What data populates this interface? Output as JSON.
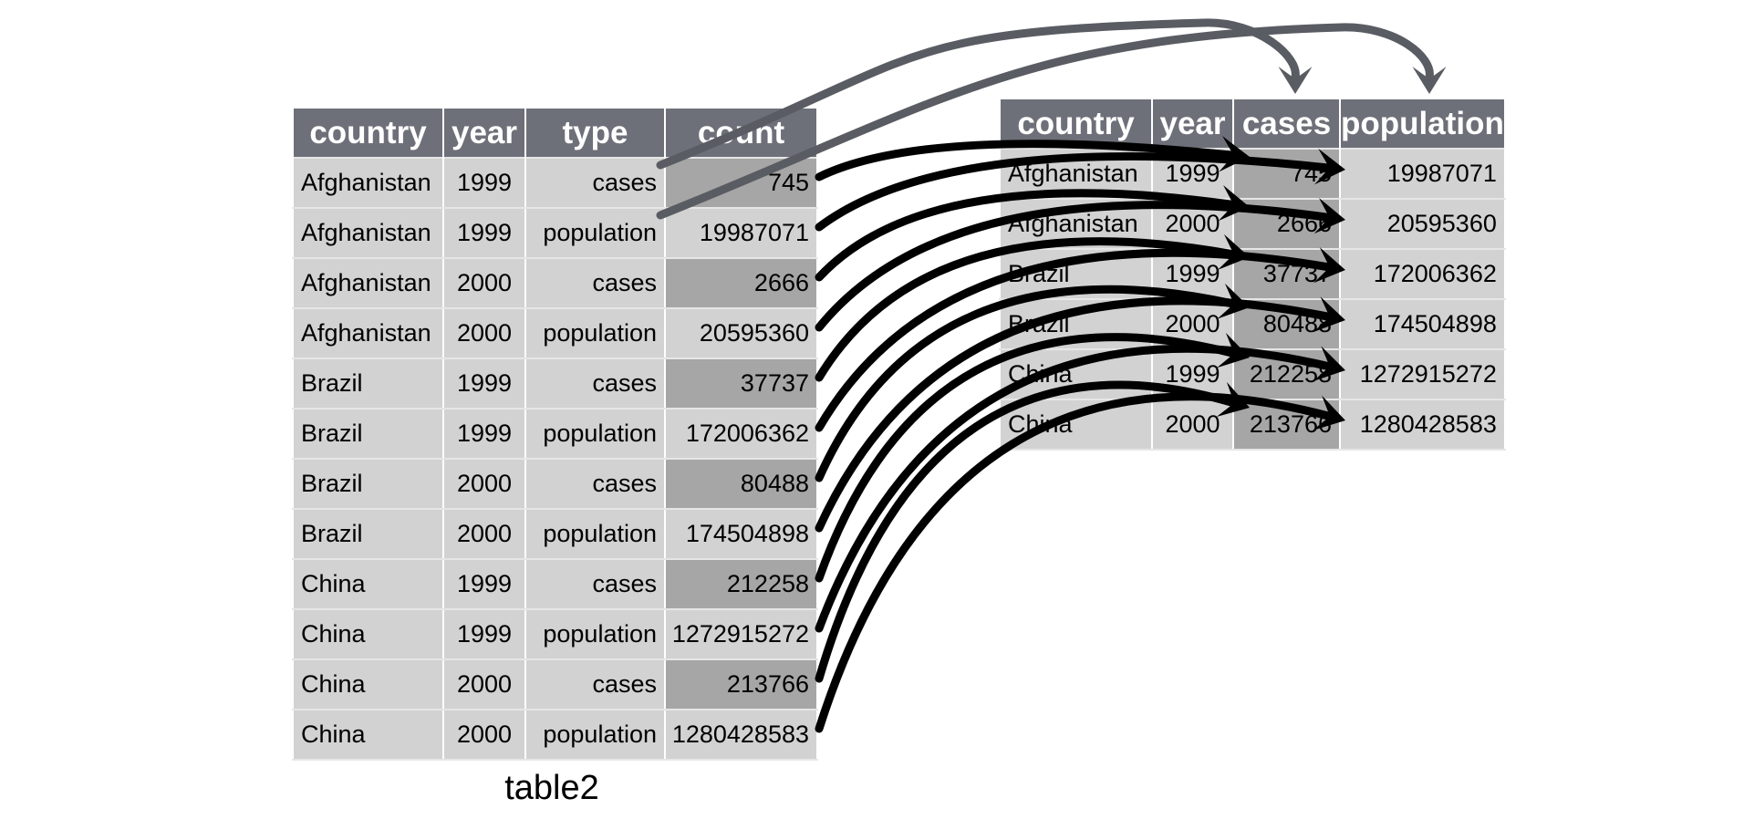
{
  "left_table": {
    "caption": "table2",
    "headers": [
      "country",
      "year",
      "type",
      "count"
    ],
    "rows": [
      [
        "Afghanistan",
        "1999",
        "cases",
        "745"
      ],
      [
        "Afghanistan",
        "1999",
        "population",
        "19987071"
      ],
      [
        "Afghanistan",
        "2000",
        "cases",
        "2666"
      ],
      [
        "Afghanistan",
        "2000",
        "population",
        "20595360"
      ],
      [
        "Brazil",
        "1999",
        "cases",
        "37737"
      ],
      [
        "Brazil",
        "1999",
        "population",
        "172006362"
      ],
      [
        "Brazil",
        "2000",
        "cases",
        "80488"
      ],
      [
        "Brazil",
        "2000",
        "population",
        "174504898"
      ],
      [
        "China",
        "1999",
        "cases",
        "212258"
      ],
      [
        "China",
        "1999",
        "population",
        "1272915272"
      ],
      [
        "China",
        "2000",
        "cases",
        "213766"
      ],
      [
        "China",
        "2000",
        "population",
        "1280428583"
      ]
    ]
  },
  "right_table": {
    "headers": [
      "country",
      "year",
      "cases",
      "population"
    ],
    "rows": [
      [
        "Afghanistan",
        "1999",
        "745",
        "19987071"
      ],
      [
        "Afghanistan",
        "2000",
        "2666",
        "20595360"
      ],
      [
        "Brazil",
        "1999",
        "37737",
        "172006362"
      ],
      [
        "Brazil",
        "2000",
        "80488",
        "174504898"
      ],
      [
        "China",
        "1999",
        "212258",
        "1272915272"
      ],
      [
        "China",
        "2000",
        "213766",
        "1280428583"
      ]
    ]
  },
  "colors": {
    "header_bg": "#6e7079",
    "cell_bg": "#d2d2d2",
    "cell_dark_bg": "#a6a6a6",
    "value_arrow": "#000000",
    "key_arrow": "#5a5c63"
  }
}
